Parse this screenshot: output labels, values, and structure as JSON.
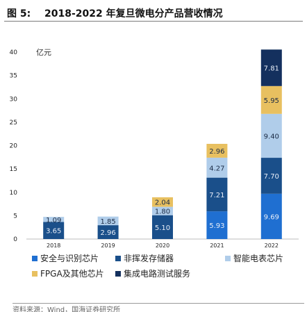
{
  "figure": {
    "label": "图 5:",
    "title": "2018-2022 年复旦微电分产品营收情况"
  },
  "chart_data": {
    "type": "bar",
    "stacked": true,
    "title": "2018-2022 年复旦微电分产品营收情况",
    "ylabel": "亿元",
    "xlabel": "",
    "ylim": [
      0,
      40
    ],
    "yticks": [
      0,
      5,
      10,
      15,
      20,
      25,
      30,
      35,
      40
    ],
    "grid": false,
    "legend_position": "bottom",
    "categories": [
      "2018",
      "2019",
      "2020",
      "2021",
      "2022"
    ],
    "series": [
      {
        "name": "安全与识别芯片",
        "color": "#1f6fd1",
        "values": [
          null,
          null,
          null,
          5.93,
          9.69
        ]
      },
      {
        "name": "非挥发存储器",
        "color": "#1a4f8a",
        "values": [
          3.65,
          2.96,
          5.1,
          7.21,
          7.7
        ]
      },
      {
        "name": "智能电表芯片",
        "color": "#b0cdea",
        "values": [
          1.09,
          1.85,
          1.8,
          4.27,
          9.4
        ]
      },
      {
        "name": "FPGA及其他芯片",
        "color": "#e8c060",
        "values": [
          null,
          null,
          2.04,
          2.96,
          5.95
        ]
      },
      {
        "name": "集成电路测试服务",
        "color": "#14305e",
        "values": [
          null,
          null,
          null,
          null,
          7.81
        ]
      }
    ],
    "data_labels": [
      {
        "category": "2018",
        "series": "非挥发存储器",
        "text": "3.65"
      },
      {
        "category": "2018",
        "series": "智能电表芯片",
        "text": "1.09"
      },
      {
        "category": "2019",
        "series": "非挥发存储器",
        "text": "2.96"
      },
      {
        "category": "2019",
        "series": "智能电表芯片",
        "text": "1.85"
      },
      {
        "category": "2020",
        "series": "非挥发存储器",
        "text": "5.10"
      },
      {
        "category": "2020",
        "series": "智能电表芯片",
        "text": "1.80"
      },
      {
        "category": "2020",
        "series": "FPGA及其他芯片",
        "text": "2.04"
      },
      {
        "category": "2021",
        "series": "安全与识别芯片",
        "text": "5.93"
      },
      {
        "category": "2021",
        "series": "非挥发存储器",
        "text": "7.21"
      },
      {
        "category": "2021",
        "series": "智能电表芯片",
        "text": "4.27"
      },
      {
        "category": "2021",
        "series": "FPGA及其他芯片",
        "text": "2.96"
      },
      {
        "category": "2022",
        "series": "安全与识别芯片",
        "text": "9.69"
      },
      {
        "category": "2022",
        "series": "非挥发存储器",
        "text": "7.70"
      },
      {
        "category": "2022",
        "series": "智能电表芯片",
        "text": "9.40"
      },
      {
        "category": "2022",
        "series": "FPGA及其他芯片",
        "text": "5.95"
      },
      {
        "category": "2022",
        "series": "集成电路测试服务",
        "text": "7.81"
      }
    ]
  },
  "legend": [
    {
      "label": "安全与识别芯片",
      "color": "#1f6fd1"
    },
    {
      "label": "非挥发存储器",
      "color": "#1a4f8a"
    },
    {
      "label": "智能电表芯片",
      "color": "#b0cdea"
    },
    {
      "label": "FPGA及其他芯片",
      "color": "#e8c060"
    },
    {
      "label": "集成电路测试服务",
      "color": "#14305e"
    }
  ],
  "footer": {
    "source": "资料来源：Wind，国海证券研究所"
  }
}
